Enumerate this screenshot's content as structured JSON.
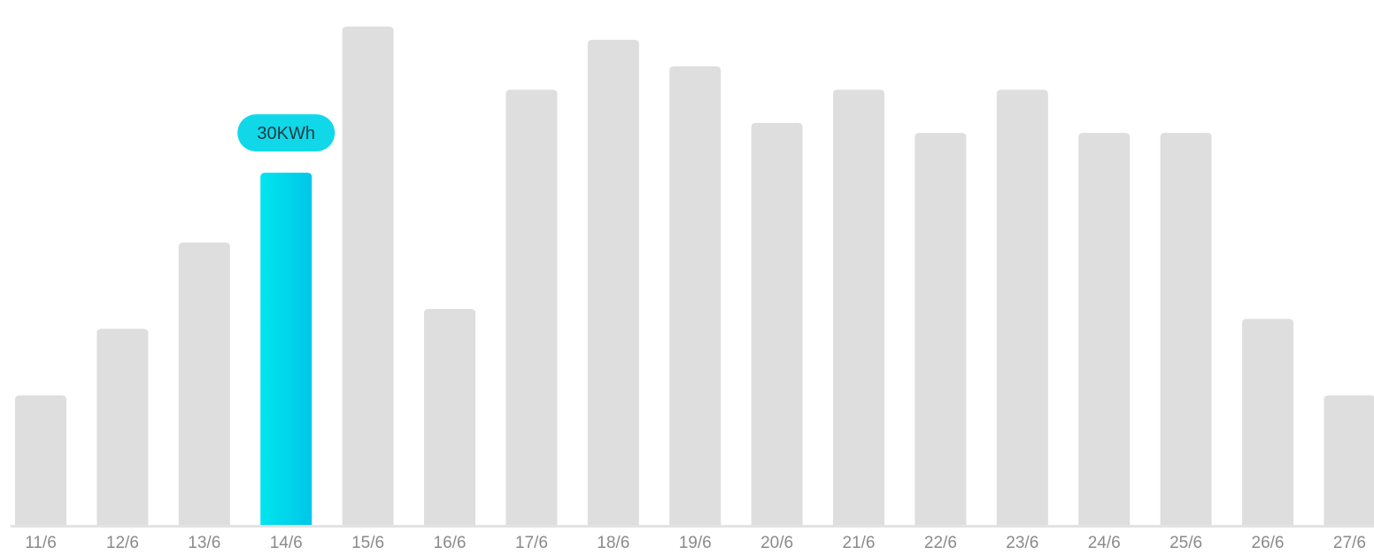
{
  "chart_data": {
    "type": "bar",
    "categories": [
      "11/6",
      "12/6",
      "13/6",
      "14/6",
      "15/6",
      "16/6",
      "17/6",
      "18/6",
      "19/6",
      "20/6",
      "21/6",
      "22/6",
      "23/6",
      "24/6",
      "25/6",
      "26/6",
      "27/6"
    ],
    "values": [
      19.5,
      29.5,
      42.5,
      53,
      75,
      32.5,
      65.5,
      73,
      69,
      60.5,
      65.5,
      59,
      65.5,
      59,
      59,
      31,
      19.5
    ],
    "ylim": [
      0,
      77
    ],
    "grid": false,
    "highlight_index": 3,
    "highlight_label": "30KWh",
    "colors": {
      "bar": "#dedede",
      "highlight_start": "#00e5ee",
      "highlight_end": "#00c7e8",
      "tooltip_bg": "#11d8e8",
      "axis": "#e3e3e3",
      "tick_text": "#8a8a8a"
    }
  }
}
